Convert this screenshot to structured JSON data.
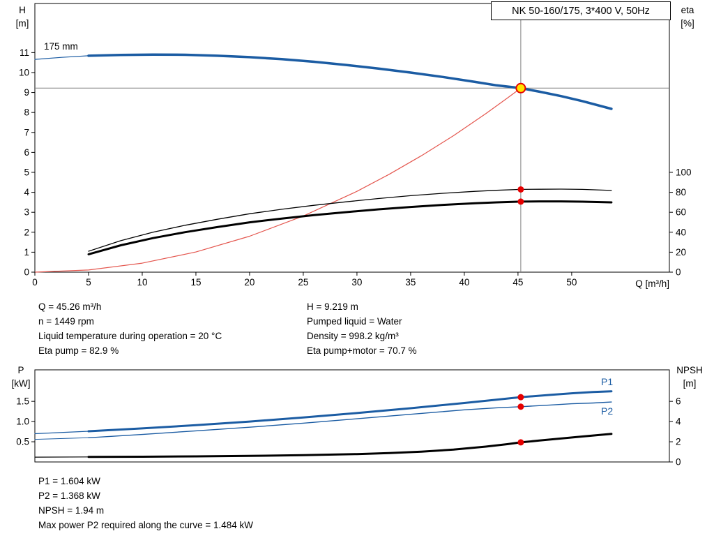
{
  "title_box": "NK 50-160/175, 3*400 V, 50Hz",
  "colors": {
    "pump_blue": "#1b5ca3",
    "system_red": "#e4564e",
    "marker_red": "#e60000",
    "duty_yellow": "#ffe400",
    "crosshair_gray": "#808080",
    "axis_black": "#000000"
  },
  "top_chart": {
    "left_axis_title": "H",
    "left_axis_unit": "[m]",
    "right_axis_title": "eta",
    "right_axis_unit": "[%]",
    "x_axis_title": "Q [m³/h]",
    "curve_label": "175 mm"
  },
  "bottom_chart": {
    "left_axis_title": "P",
    "left_axis_unit": "[kW]",
    "right_axis_title": "NPSH",
    "right_axis_unit": "[m]",
    "p1_label": "P1",
    "p2_label": "P2"
  },
  "info_block": {
    "left": [
      "Q = 45.26 m³/h",
      "n = 1449 rpm",
      "Liquid temperature during operation = 20 °C",
      "Eta pump = 82.9 %"
    ],
    "right": [
      "H = 9.219 m",
      "Pumped liquid = Water",
      "Density = 998.2 kg/m³",
      "Eta pump+motor = 70.7 %"
    ]
  },
  "results_block": {
    "lines": [
      "P1 = 1.604 kW",
      "P2 = 1.368 kW",
      "NPSH = 1.94 m",
      "Max power P2 required along the curve = 1.484 kW"
    ]
  },
  "chart_data": [
    {
      "type": "line",
      "title": "NK 50-160/175, 3*400 V, 50Hz",
      "xlabel": "Q [m³/h]",
      "ylabel": "H [m]",
      "y2label": "eta [%]",
      "xlim": [
        0,
        59.1
      ],
      "ylim": [
        0,
        13.46
      ],
      "y2_scale": 0.05,
      "grid": false,
      "x_ticks": [
        "0",
        "5",
        "10",
        "15",
        "20",
        "25",
        "30",
        "35",
        "40",
        "45",
        "50"
      ],
      "y_ticks": [
        "0",
        "1",
        "2",
        "3",
        "4",
        "5",
        "6",
        "7",
        "8",
        "9",
        "10",
        "11"
      ],
      "y2_ticks": [
        "0",
        "20",
        "40",
        "60",
        "80",
        "100"
      ],
      "duty_point": {
        "Q": 45.26,
        "H": 9.219
      },
      "series": [
        {
          "name": "pump-curve-extrapolation",
          "axis": "y",
          "color": "#1b5ca3",
          "width": 1.2,
          "points": [
            [
              0,
              10.66
            ],
            [
              2.5,
              10.76
            ],
            [
              5,
              10.84
            ]
          ]
        },
        {
          "name": "pump-curve-175mm",
          "axis": "y",
          "color": "#1b5ca3",
          "width": 3.5,
          "points": [
            [
              5,
              10.84
            ],
            [
              8,
              10.88
            ],
            [
              11,
              10.9
            ],
            [
              14,
              10.89
            ],
            [
              17,
              10.84
            ],
            [
              20,
              10.77
            ],
            [
              23,
              10.67
            ],
            [
              26,
              10.54
            ],
            [
              29,
              10.38
            ],
            [
              32,
              10.2
            ],
            [
              35,
              10.0
            ],
            [
              38,
              9.78
            ],
            [
              41,
              9.53
            ],
            [
              43,
              9.36
            ],
            [
              45.26,
              9.219
            ],
            [
              47,
              9.04
            ],
            [
              49,
              8.82
            ],
            [
              51,
              8.57
            ],
            [
              53.7,
              8.18
            ]
          ]
        },
        {
          "name": "system-curve",
          "axis": "y",
          "color": "#e4564e",
          "width": 1.2,
          "points": [
            [
              0,
              0
            ],
            [
              5,
              0.11
            ],
            [
              10,
              0.45
            ],
            [
              15,
              1.01
            ],
            [
              20,
              1.8
            ],
            [
              25,
              2.81
            ],
            [
              30,
              4.05
            ],
            [
              33,
              4.9
            ],
            [
              36,
              5.83
            ],
            [
              39,
              6.84
            ],
            [
              42,
              7.94
            ],
            [
              44,
              8.72
            ],
            [
              45.26,
              9.219
            ]
          ]
        },
        {
          "name": "eta-pump-curve",
          "axis": "y2",
          "color": "#000000",
          "width": 1.3,
          "points": [
            [
              5,
              21
            ],
            [
              8,
              31.5
            ],
            [
              11,
              40
            ],
            [
              14,
              47
            ],
            [
              17,
              53
            ],
            [
              20,
              58.5
            ],
            [
              23,
              63
            ],
            [
              26,
              67
            ],
            [
              29,
              70.5
            ],
            [
              32,
              73.8
            ],
            [
              35,
              76.6
            ],
            [
              38,
              79
            ],
            [
              41,
              81
            ],
            [
              43,
              82
            ],
            [
              45.26,
              82.9
            ],
            [
              47,
              83.1
            ],
            [
              49,
              83.2
            ],
            [
              51,
              82.9
            ],
            [
              53.7,
              81.9
            ]
          ]
        },
        {
          "name": "eta-pump-motor-curve",
          "axis": "y2",
          "color": "#000000",
          "width": 3,
          "points": [
            [
              5,
              17.9
            ],
            [
              8,
              26.9
            ],
            [
              11,
              34.1
            ],
            [
              14,
              40.1
            ],
            [
              17,
              45.2
            ],
            [
              20,
              49.9
            ],
            [
              23,
              53.7
            ],
            [
              26,
              57.1
            ],
            [
              29,
              60.1
            ],
            [
              32,
              62.9
            ],
            [
              35,
              65.3
            ],
            [
              38,
              67.4
            ],
            [
              41,
              69.1
            ],
            [
              43,
              69.9
            ],
            [
              45.26,
              70.7
            ],
            [
              47,
              70.9
            ],
            [
              49,
              70.9
            ],
            [
              51,
              70.6
            ],
            [
              53.7,
              69.9
            ]
          ]
        }
      ],
      "markers": [
        {
          "name": "eta-pump-marker",
          "axis": "y2",
          "x": 45.26,
          "y": 82.9,
          "r": 4.5,
          "fill": "#e60000"
        },
        {
          "name": "eta-pump-motor-marker",
          "axis": "y2",
          "x": 45.26,
          "y": 70.7,
          "r": 4.5,
          "fill": "#e60000"
        },
        {
          "name": "duty-point-marker",
          "axis": "y",
          "x": 45.26,
          "y": 9.219,
          "r": 6.5,
          "fill": "#ffe400",
          "stroke": "#e60000",
          "stroke_width": 2
        }
      ]
    },
    {
      "type": "line",
      "title": "",
      "xlabel": "Q [m³/h]",
      "ylabel": "P [kW]",
      "y2label": "NPSH [m]",
      "xlim": [
        0,
        59.1
      ],
      "ylim": [
        0,
        2.28
      ],
      "y2_scale": 0.25,
      "grid": false,
      "x_ticks": [],
      "y_ticks": [
        "0.5",
        "1.0",
        "1.5"
      ],
      "y2_ticks": [
        "0",
        "2",
        "4",
        "6"
      ],
      "series": [
        {
          "name": "p1-curve-extrapolation",
          "axis": "y",
          "color": "#1b5ca3",
          "width": 1.2,
          "points": [
            [
              0,
              0.7
            ],
            [
              5,
              0.76
            ]
          ]
        },
        {
          "name": "p1-curve",
          "axis": "y",
          "color": "#1b5ca3",
          "width": 3,
          "points": [
            [
              5,
              0.76
            ],
            [
              10,
              0.83
            ],
            [
              15,
              0.91
            ],
            [
              20,
              1.0
            ],
            [
              25,
              1.1
            ],
            [
              30,
              1.21
            ],
            [
              35,
              1.33
            ],
            [
              40,
              1.46
            ],
            [
              43,
              1.54
            ],
            [
              45.26,
              1.604
            ],
            [
              48,
              1.66
            ],
            [
              50,
              1.7
            ],
            [
              52,
              1.73
            ],
            [
              53.7,
              1.75
            ]
          ]
        },
        {
          "name": "p2-curve-extrapolation",
          "axis": "y",
          "color": "#1b5ca3",
          "width": 1,
          "points": [
            [
              0,
              0.56
            ],
            [
              5,
              0.6
            ]
          ]
        },
        {
          "name": "p2-curve",
          "axis": "y",
          "color": "#1b5ca3",
          "width": 1.4,
          "points": [
            [
              5,
              0.6
            ],
            [
              10,
              0.68
            ],
            [
              15,
              0.77
            ],
            [
              20,
              0.86
            ],
            [
              25,
              0.96
            ],
            [
              30,
              1.07
            ],
            [
              35,
              1.18
            ],
            [
              40,
              1.29
            ],
            [
              43,
              1.34
            ],
            [
              45.26,
              1.368
            ],
            [
              48,
              1.41
            ],
            [
              50,
              1.44
            ],
            [
              52,
              1.46
            ],
            [
              53.7,
              1.484
            ]
          ]
        },
        {
          "name": "npsh-curve-extrapolation",
          "axis": "y2",
          "color": "#000000",
          "width": 1.2,
          "points": [
            [
              0,
              0.48
            ],
            [
              5,
              0.5
            ]
          ]
        },
        {
          "name": "npsh-curve",
          "axis": "y2",
          "color": "#000000",
          "width": 3,
          "points": [
            [
              5,
              0.5
            ],
            [
              10,
              0.52
            ],
            [
              15,
              0.55
            ],
            [
              20,
              0.6
            ],
            [
              25,
              0.67
            ],
            [
              30,
              0.78
            ],
            [
              33,
              0.88
            ],
            [
              36,
              1.02
            ],
            [
              39,
              1.22
            ],
            [
              42,
              1.52
            ],
            [
              44,
              1.76
            ],
            [
              45.26,
              1.94
            ],
            [
              47,
              2.12
            ],
            [
              49,
              2.32
            ],
            [
              51,
              2.52
            ],
            [
              53.7,
              2.78
            ]
          ]
        }
      ],
      "markers": [
        {
          "name": "p1-marker",
          "axis": "y",
          "x": 45.26,
          "y": 1.604,
          "r": 4.5,
          "fill": "#e60000"
        },
        {
          "name": "p2-marker",
          "axis": "y",
          "x": 45.26,
          "y": 1.368,
          "r": 4.5,
          "fill": "#e60000"
        },
        {
          "name": "npsh-marker",
          "axis": "y2",
          "x": 45.26,
          "y": 1.94,
          "r": 4.5,
          "fill": "#e60000"
        }
      ]
    }
  ]
}
